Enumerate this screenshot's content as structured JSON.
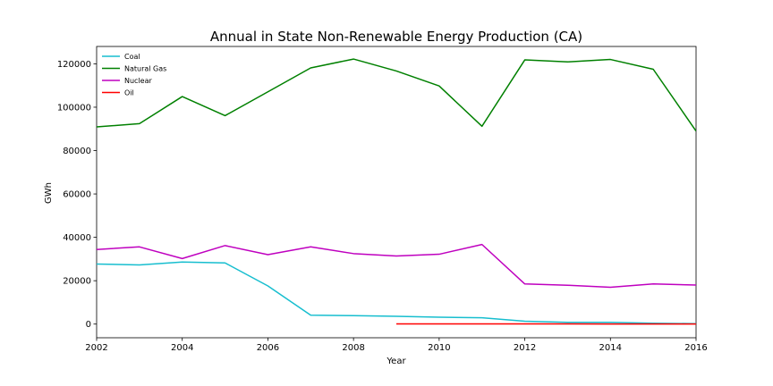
{
  "chart_data": {
    "type": "line",
    "title": "Annual in State Non-Renewable Energy Production (CA)",
    "xlabel": "Year",
    "ylabel": "GWh",
    "xlim": [
      2002,
      2016
    ],
    "ylim": [
      -6300,
      128000
    ],
    "x_ticks": [
      2002,
      2004,
      2006,
      2008,
      2010,
      2012,
      2014,
      2016
    ],
    "x_tick_labels": [
      "2002",
      "2004",
      "2006",
      "2008",
      "2010",
      "2012",
      "2014",
      "2016"
    ],
    "y_ticks": [
      0,
      20000,
      40000,
      60000,
      80000,
      100000,
      120000
    ],
    "y_tick_labels": [
      "0",
      "20000",
      "40000",
      "60000",
      "80000",
      "100000",
      "120000"
    ],
    "grid": false,
    "legend_position": "top-left",
    "series": [
      {
        "name": "Coal",
        "color": "#17becf",
        "x": [
          2002,
          2003,
          2004,
          2005,
          2006,
          2007,
          2008,
          2009,
          2010,
          2011,
          2012,
          2013,
          2014,
          2015,
          2016
        ],
        "values": [
          27700,
          27300,
          28600,
          28200,
          17600,
          4100,
          3900,
          3600,
          3200,
          2900,
          1300,
          800,
          800,
          400,
          200
        ]
      },
      {
        "name": "Natural Gas",
        "color": "#008000",
        "x": [
          2002,
          2003,
          2004,
          2005,
          2006,
          2007,
          2008,
          2009,
          2010,
          2011,
          2012,
          2013,
          2014,
          2015,
          2016
        ],
        "values": [
          90900,
          92400,
          104900,
          96100,
          107100,
          118100,
          122200,
          116700,
          109800,
          91200,
          121800,
          120900,
          122000,
          117500,
          89000
        ]
      },
      {
        "name": "Nuclear",
        "color": "#bf00bf",
        "x": [
          2002,
          2003,
          2004,
          2005,
          2006,
          2007,
          2008,
          2009,
          2010,
          2011,
          2012,
          2013,
          2014,
          2015,
          2016
        ],
        "values": [
          34400,
          35600,
          30200,
          36200,
          32000,
          35600,
          32500,
          31400,
          32200,
          36700,
          18500,
          17900,
          17000,
          18500,
          18000
        ]
      },
      {
        "name": "Oil",
        "color": "#ff0000",
        "x": [
          2009,
          2010,
          2011,
          2012,
          2013,
          2014,
          2015,
          2016
        ],
        "values": [
          100,
          90,
          80,
          70,
          60,
          50,
          40,
          30
        ]
      }
    ]
  }
}
